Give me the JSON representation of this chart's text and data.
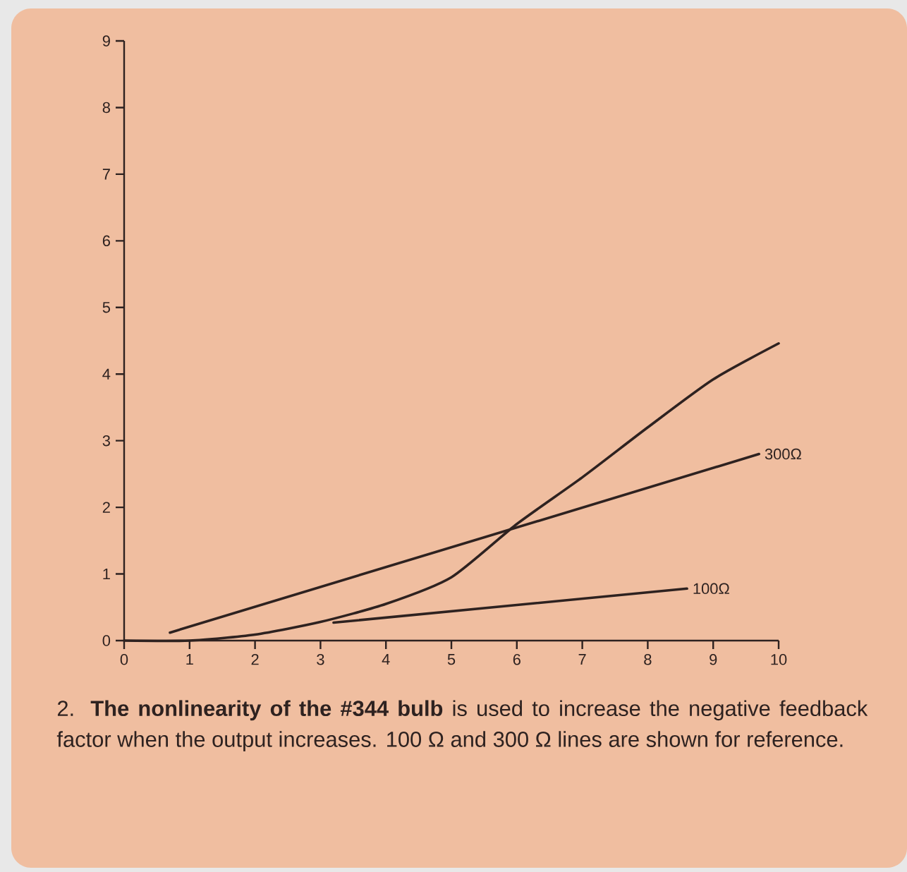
{
  "chart_data": {
    "type": "line",
    "xlim": [
      0,
      10
    ],
    "ylim": [
      0,
      9
    ],
    "xticks": [
      0,
      1,
      2,
      3,
      4,
      5,
      6,
      7,
      8,
      9,
      10
    ],
    "yticks": [
      0,
      1,
      2,
      3,
      4,
      5,
      6,
      7,
      8,
      9
    ],
    "grid": false,
    "legend": false,
    "marker": "none",
    "line_style": "solid",
    "series": [
      {
        "color": "#2e2220",
        "x": [
          0,
          1,
          2,
          3,
          4,
          5,
          6,
          7,
          8,
          9,
          10
        ],
        "values": [
          0,
          0.0,
          0.09,
          0.28,
          0.55,
          0.95,
          1.75,
          2.45,
          3.2,
          3.92,
          4.46
        ]
      },
      {
        "name": "300Ω",
        "color": "#2e2220",
        "x": [
          0.7,
          9.7
        ],
        "values": [
          0.12,
          2.8
        ]
      },
      {
        "name": "100Ω",
        "color": "#2e2220",
        "x": [
          3.2,
          8.6
        ],
        "values": [
          0.27,
          0.78
        ]
      }
    ],
    "annotations": [
      "2. **The nonlinearity of the #344 bulb** is used to increase the negative feedback factor when the output increases. 100 Ω and 300 Ω lines are shown for reference."
    ]
  }
}
